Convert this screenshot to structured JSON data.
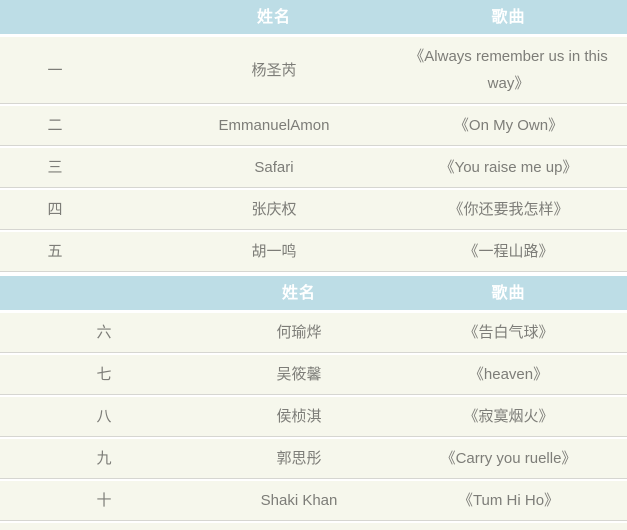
{
  "colors": {
    "header_bg": "#bddde6",
    "header_text": "#ffffff",
    "row_bg": "#f6f7ec",
    "body_text": "#7d7d78",
    "divider": "#d6d6d1",
    "page_bg": "#ffffff"
  },
  "table1": {
    "headers": [
      "",
      "姓名",
      "歌曲"
    ],
    "rows": [
      {
        "no": "一",
        "name": "杨圣芮",
        "song": "《Always remember us in this way》"
      },
      {
        "no": "二",
        "name": "EmmanuelAmon",
        "song": "《On My Own》"
      },
      {
        "no": "三",
        "name": "Safari",
        "song": "《You raise me up》"
      },
      {
        "no": "四",
        "name": "张庆权",
        "song": "《你还要我怎样》"
      },
      {
        "no": "五",
        "name": "胡一鸣",
        "song": "《一程山路》"
      }
    ]
  },
  "table2": {
    "headers": [
      "",
      "姓名",
      "歌曲"
    ],
    "rows": [
      {
        "no": "六",
        "name": "何瑜烨",
        "song": "《告白气球》"
      },
      {
        "no": "七",
        "name": "吴筱馨",
        "song": "《heaven》"
      },
      {
        "no": "八",
        "name": "侯桢淇",
        "song": "《寂寞烟火》"
      },
      {
        "no": "九",
        "name": "郭思彤",
        "song": "《Carry you ruelle》"
      },
      {
        "no": "十",
        "name": "Shaki Khan",
        "song": "《Tum Hi Ho》"
      }
    ]
  }
}
